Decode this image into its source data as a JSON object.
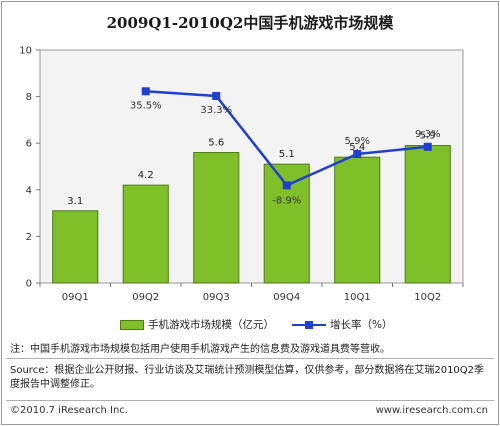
{
  "chart_data": {
    "type": "bar",
    "title": "2009Q1-2010Q2中国手机游戏市场规模",
    "categories": [
      "09Q1",
      "09Q2",
      "09Q3",
      "09Q4",
      "10Q1",
      "10Q2"
    ],
    "series": [
      {
        "name": "手机游戏市场规模（亿元）",
        "type": "bar",
        "axis": "left",
        "values": [
          3.1,
          4.2,
          5.6,
          5.1,
          5.4,
          5.9
        ],
        "labels": [
          "3.1",
          "4.2",
          "5.6",
          "5.1",
          "5.4",
          "5.9"
        ]
      },
      {
        "name": "增长率（%）",
        "type": "line",
        "axis": "none",
        "values": [
          null,
          35.5,
          33.3,
          -8.9,
          5.9,
          9.3
        ],
        "labels": [
          "",
          "35.5%",
          "33.3%",
          "-8.9%",
          "5.9%",
          "9.3%"
        ]
      }
    ],
    "yticks": [
      "0",
      "2",
      "4",
      "6",
      "8",
      "10"
    ],
    "ylim": [
      0,
      10
    ],
    "grid": false,
    "legend_position": "bottom"
  },
  "colors": {
    "bar_fill": "#7fbf2a",
    "bar_stroke": "#4f7a1a",
    "line": "#1f3fcf",
    "plot_bg": "#f3f3f3",
    "plot_border": "#9a9a9a"
  },
  "legend": {
    "bar_label": "手机游戏市场规模（亿元）",
    "line_label": "增长率（%）"
  },
  "note": "注：中国手机游戏市场规模包括用户使用手机游戏产生的信息费及游戏道具费等营收。",
  "source_text": "Source：根据企业公开财报、行业访谈及艾瑞统计预测模型估算，仅供参考，部分数据将在艾瑞2010Q2季度报告中调整修正。",
  "footer": {
    "copyright": "©2010.7 iResearch Inc.",
    "website": "www.iresearch.com.cn"
  }
}
